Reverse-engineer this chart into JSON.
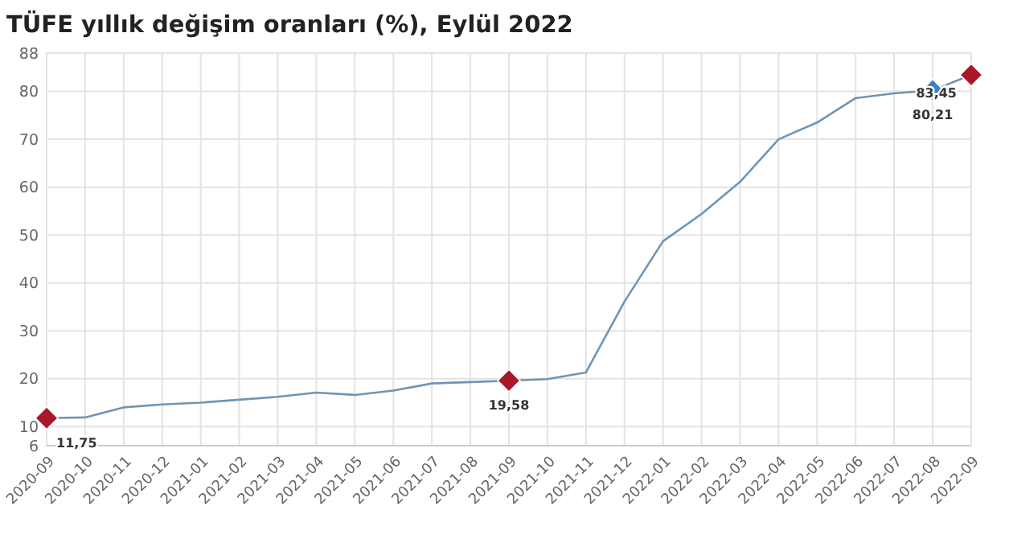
{
  "chart_data": {
    "type": "line",
    "title": "TÜFE yıllık değişim oranları (%), Eylül 2022",
    "categories": [
      "2020-09",
      "2020-10",
      "2020-11",
      "2020-12",
      "2021-01",
      "2021-02",
      "2021-03",
      "2021-04",
      "2021-05",
      "2021-06",
      "2021-07",
      "2021-08",
      "2021-09",
      "2021-10",
      "2021-11",
      "2021-12",
      "2022-01",
      "2022-02",
      "2022-03",
      "2022-04",
      "2022-05",
      "2022-06",
      "2022-07",
      "2022-08",
      "2022-09"
    ],
    "series": [
      {
        "color": "#6f95b5",
        "values": [
          11.75,
          11.9,
          14,
          14.6,
          15,
          15.6,
          16.2,
          17.1,
          16.6,
          17.5,
          19,
          19.3,
          19.58,
          19.9,
          21.3,
          36.1,
          48.7,
          54.4,
          61.1,
          70,
          73.5,
          78.6,
          79.6,
          80.21,
          83.45
        ]
      },
      {
        "type": "scatter",
        "marker": "diamond",
        "values": [
          11.75,
          null,
          null,
          null,
          null,
          null,
          null,
          null,
          null,
          null,
          null,
          null,
          19.58,
          null,
          null,
          null,
          null,
          null,
          null,
          null,
          null,
          null,
          null,
          80.21,
          83.45
        ],
        "colors": [
          "#a8182a",
          null,
          null,
          null,
          null,
          null,
          null,
          null,
          null,
          null,
          null,
          null,
          "#a8182a",
          null,
          null,
          null,
          null,
          null,
          null,
          null,
          null,
          null,
          null,
          "#3a7fc0",
          "#a8182a"
        ],
        "value_labels": [
          "11,75",
          null,
          null,
          null,
          null,
          null,
          null,
          null,
          null,
          null,
          null,
          null,
          "19,58",
          null,
          null,
          null,
          null,
          null,
          null,
          null,
          null,
          null,
          null,
          "80,21",
          "83,45"
        ]
      }
    ],
    "ylim": [
      6,
      88
    ],
    "yticks": [
      6,
      10,
      20,
      30,
      40,
      50,
      60,
      70,
      80,
      88
    ],
    "grid": true
  }
}
